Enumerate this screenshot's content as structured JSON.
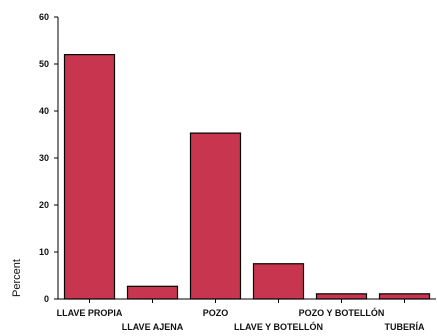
{
  "chart_data": {
    "type": "bar",
    "title": "",
    "xlabel": "",
    "ylabel": "Percent",
    "ylim": [
      0,
      60
    ],
    "yticks": [
      0,
      10,
      20,
      30,
      40,
      50,
      60
    ],
    "grid": false,
    "categories": [
      "LLAVE PROPIA",
      "LLAVE AJENA",
      "POZO",
      "LLAVE Y BOTELLÓN",
      "POZO Y BOTELLÓN",
      "TUBERÍA"
    ],
    "values": [
      52,
      2.7,
      35.3,
      7.5,
      1.1,
      1.1
    ],
    "bar_color": "#c8354f",
    "bar_outline": "#000000"
  }
}
